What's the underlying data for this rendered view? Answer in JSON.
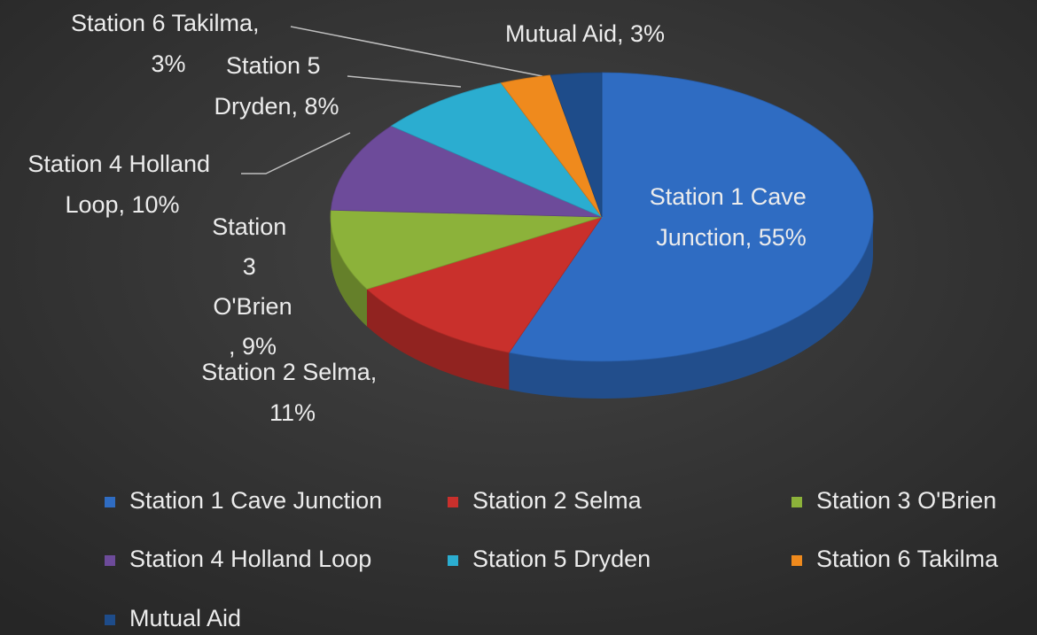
{
  "chart_data": {
    "type": "pie3d",
    "categories": [
      "Station 1 Cave Junction",
      "Station 2 Selma",
      "Station 3 O'Brien",
      "Station 4 Holland Loop",
      "Station 5 Dryden",
      "Station 6 Takilma",
      "Mutual Aid"
    ],
    "values": [
      55,
      11,
      9,
      10,
      8,
      3,
      3
    ],
    "value_labels": [
      "Station 1 Cave Junction, 55%",
      "Station 2 Selma, 11%",
      "Station 3 O'Brien, 9%",
      "Station 4 Holland Loop, 10%",
      "Station 5 Dryden, 8%",
      "Station 6 Takilma, 3%",
      "Mutual Aid, 3%"
    ],
    "colors": [
      "#2f6cc2",
      "#c9302c",
      "#8cb23a",
      "#6d4b9a",
      "#2badd0",
      "#ef8a1d",
      "#1e4c8a"
    ],
    "legend": "bottom"
  }
}
